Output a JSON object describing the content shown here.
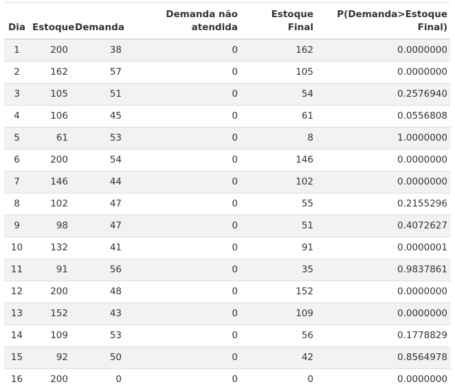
{
  "table": {
    "headers": {
      "dia": "Dia",
      "estoque": "Estoque",
      "demanda": "Demanda",
      "nao_atendida_line1": "Demanda não",
      "nao_atendida_line2": "atendida",
      "estoque_final": "Estoque Final",
      "prob": "P(Demanda>Estoque Final)"
    },
    "rows": [
      {
        "dia": "1",
        "estoque": "200",
        "demanda": "38",
        "nao_atendida": "0",
        "estoque_final": "162",
        "prob": "0.0000000"
      },
      {
        "dia": "2",
        "estoque": "162",
        "demanda": "57",
        "nao_atendida": "0",
        "estoque_final": "105",
        "prob": "0.0000000"
      },
      {
        "dia": "3",
        "estoque": "105",
        "demanda": "51",
        "nao_atendida": "0",
        "estoque_final": "54",
        "prob": "0.2576940"
      },
      {
        "dia": "4",
        "estoque": "106",
        "demanda": "45",
        "nao_atendida": "0",
        "estoque_final": "61",
        "prob": "0.0556808"
      },
      {
        "dia": "5",
        "estoque": "61",
        "demanda": "53",
        "nao_atendida": "0",
        "estoque_final": "8",
        "prob": "1.0000000"
      },
      {
        "dia": "6",
        "estoque": "200",
        "demanda": "54",
        "nao_atendida": "0",
        "estoque_final": "146",
        "prob": "0.0000000"
      },
      {
        "dia": "7",
        "estoque": "146",
        "demanda": "44",
        "nao_atendida": "0",
        "estoque_final": "102",
        "prob": "0.0000000"
      },
      {
        "dia": "8",
        "estoque": "102",
        "demanda": "47",
        "nao_atendida": "0",
        "estoque_final": "55",
        "prob": "0.2155296"
      },
      {
        "dia": "9",
        "estoque": "98",
        "demanda": "47",
        "nao_atendida": "0",
        "estoque_final": "51",
        "prob": "0.4072627"
      },
      {
        "dia": "10",
        "estoque": "132",
        "demanda": "41",
        "nao_atendida": "0",
        "estoque_final": "91",
        "prob": "0.0000001"
      },
      {
        "dia": "11",
        "estoque": "91",
        "demanda": "56",
        "nao_atendida": "0",
        "estoque_final": "35",
        "prob": "0.9837861"
      },
      {
        "dia": "12",
        "estoque": "200",
        "demanda": "48",
        "nao_atendida": "0",
        "estoque_final": "152",
        "prob": "0.0000000"
      },
      {
        "dia": "13",
        "estoque": "152",
        "demanda": "43",
        "nao_atendida": "0",
        "estoque_final": "109",
        "prob": "0.0000000"
      },
      {
        "dia": "14",
        "estoque": "109",
        "demanda": "53",
        "nao_atendida": "0",
        "estoque_final": "56",
        "prob": "0.1778829"
      },
      {
        "dia": "15",
        "estoque": "92",
        "demanda": "50",
        "nao_atendida": "0",
        "estoque_final": "42",
        "prob": "0.8564978"
      },
      {
        "dia": "16",
        "estoque": "200",
        "demanda": "0",
        "nao_atendida": "0",
        "estoque_final": "0",
        "prob": "0.0000000"
      }
    ]
  }
}
